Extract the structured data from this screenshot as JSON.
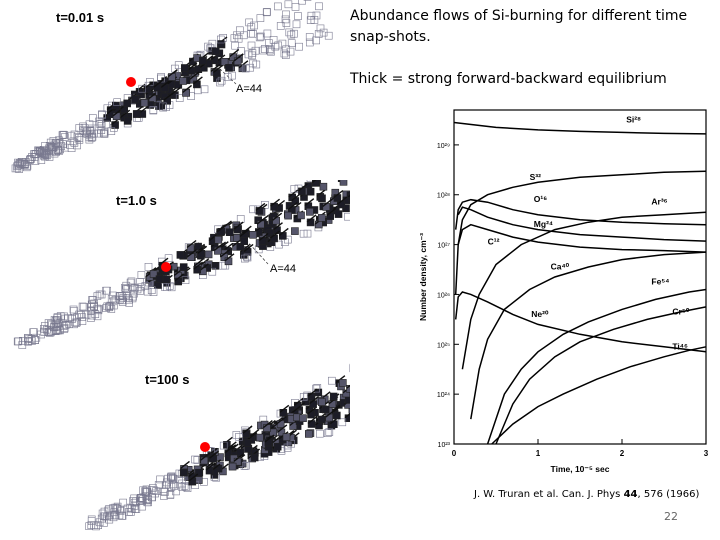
{
  "caption": {
    "line1": "Abundance flows of Si-burning for different time snap-shots.",
    "line2": "Thick = strong forward-backward equilibrium"
  },
  "panels": [
    {
      "time_label": "t=0.01 s",
      "mass_label": "A=44"
    },
    {
      "time_label": "t=1.0 s",
      "mass_label": "A=44"
    },
    {
      "time_label": "t=100 s",
      "mass_label": ""
    }
  ],
  "chart_data": {
    "type": "line",
    "xlabel": "Time, 10⁻⁵ sec",
    "ylabel": "Number density, cm⁻³",
    "x_ticks": [
      "0",
      "1",
      "2",
      "3"
    ],
    "y_ticks": [
      "10²³",
      "10²⁴",
      "10²⁵",
      "10²⁶",
      "10²⁷",
      "10²⁸",
      "10²⁹"
    ],
    "xlim": [
      0,
      3
    ],
    "ylim": [
      23,
      29.7
    ],
    "y_scale": "log",
    "series": [
      {
        "name": "Si²⁸",
        "x": [
          0,
          0.5,
          1,
          1.5,
          2,
          2.5,
          3
        ],
        "y": [
          29.45,
          29.35,
          29.3,
          29.27,
          29.25,
          29.23,
          29.22
        ]
      },
      {
        "name": "S³²",
        "x": [
          0.02,
          0.05,
          0.1,
          0.2,
          0.4,
          0.7,
          1.0,
          1.5,
          2.0,
          2.5,
          3.0
        ],
        "y": [
          26.0,
          27.0,
          27.5,
          27.8,
          28.0,
          28.15,
          28.25,
          28.35,
          28.4,
          28.45,
          28.47
        ]
      },
      {
        "name": "O¹⁶",
        "x": [
          0.02,
          0.05,
          0.1,
          0.2,
          0.4,
          0.7,
          1.0,
          1.5,
          2.0,
          2.5,
          3.0
        ],
        "y": [
          27.3,
          27.7,
          27.85,
          27.9,
          27.85,
          27.7,
          27.6,
          27.5,
          27.45,
          27.42,
          27.4
        ]
      },
      {
        "name": "Mg²⁴",
        "x": [
          0.05,
          0.1,
          0.2,
          0.4,
          0.7,
          1.0,
          1.5,
          2.0,
          2.5,
          3.0
        ],
        "y": [
          27.6,
          27.75,
          27.7,
          27.55,
          27.4,
          27.3,
          27.2,
          27.15,
          27.1,
          27.07
        ]
      },
      {
        "name": "Ar³⁶",
        "x": [
          0.1,
          0.2,
          0.3,
          0.5,
          0.8,
          1.2,
          1.6,
          2.0,
          2.5,
          3.0
        ],
        "y": [
          24.5,
          25.5,
          26.0,
          26.6,
          27.0,
          27.3,
          27.45,
          27.55,
          27.6,
          27.65
        ]
      },
      {
        "name": "C¹²",
        "x": [
          0.05,
          0.1,
          0.2,
          0.4,
          0.7,
          1.0,
          1.5,
          2.0,
          2.5,
          3.0
        ],
        "y": [
          27.0,
          27.3,
          27.4,
          27.3,
          27.15,
          27.05,
          26.95,
          26.9,
          26.88,
          26.85
        ]
      },
      {
        "name": "Ca⁴⁰",
        "x": [
          0.2,
          0.3,
          0.4,
          0.6,
          0.9,
          1.2,
          1.6,
          2.0,
          2.5,
          3.0
        ],
        "y": [
          23.5,
          24.5,
          25.1,
          25.7,
          26.1,
          26.35,
          26.55,
          26.7,
          26.8,
          26.85
        ]
      },
      {
        "name": "Ne²⁰",
        "x": [
          0.02,
          0.05,
          0.1,
          0.2,
          0.4,
          0.7,
          1.0,
          1.5,
          2.0,
          2.5,
          3.0
        ],
        "y": [
          25.5,
          25.95,
          26.05,
          26.0,
          25.85,
          25.6,
          25.4,
          25.2,
          25.05,
          24.95,
          24.85
        ]
      },
      {
        "name": "Fe⁵⁴",
        "x": [
          0.4,
          0.6,
          0.8,
          1.0,
          1.3,
          1.6,
          2.0,
          2.4,
          2.8,
          3.0
        ],
        "y": [
          23.0,
          24.0,
          24.5,
          24.85,
          25.2,
          25.45,
          25.7,
          25.9,
          26.05,
          26.1
        ]
      },
      {
        "name": "Cr⁵⁰",
        "x": [
          0.5,
          0.7,
          0.9,
          1.2,
          1.5,
          1.9,
          2.3,
          2.7,
          3.0
        ],
        "y": [
          23.0,
          23.8,
          24.3,
          24.75,
          25.05,
          25.3,
          25.5,
          25.65,
          25.75
        ]
      },
      {
        "name": "Ti⁴⁶",
        "x": [
          0.45,
          0.7,
          1.0,
          1.3,
          1.7,
          2.1,
          2.5,
          2.8,
          3.0
        ],
        "y": [
          23.0,
          23.4,
          23.75,
          24.0,
          24.3,
          24.55,
          24.75,
          24.88,
          24.95
        ]
      }
    ],
    "label_positions": [
      {
        "name": "Si²⁸",
        "x": 2.05,
        "y": 29.45
      },
      {
        "name": "S³²",
        "x": 0.9,
        "y": 28.3
      },
      {
        "name": "O¹⁶",
        "x": 0.95,
        "y": 27.85
      },
      {
        "name": "Mg²⁴",
        "x": 0.95,
        "y": 27.35
      },
      {
        "name": "Ar³⁶",
        "x": 2.35,
        "y": 27.8
      },
      {
        "name": "C¹²",
        "x": 0.4,
        "y": 27.0
      },
      {
        "name": "Ca⁴⁰",
        "x": 1.15,
        "y": 26.5
      },
      {
        "name": "Ne²⁰",
        "x": 0.92,
        "y": 25.55
      },
      {
        "name": "Fe⁵⁴",
        "x": 2.35,
        "y": 26.2
      },
      {
        "name": "Cr⁵⁰",
        "x": 2.6,
        "y": 25.6
      },
      {
        "name": "Ti⁴⁶",
        "x": 2.6,
        "y": 24.9
      }
    ]
  },
  "citation": {
    "before": "J. W. Truran et al. Can. J. Phys ",
    "volume": "44",
    "after": ", 576 (1966)"
  },
  "slide_number": "22",
  "colors": {
    "dense_flow": "#1c1c26",
    "light_flow": "#7a7a90",
    "marker": "#ff0000"
  }
}
